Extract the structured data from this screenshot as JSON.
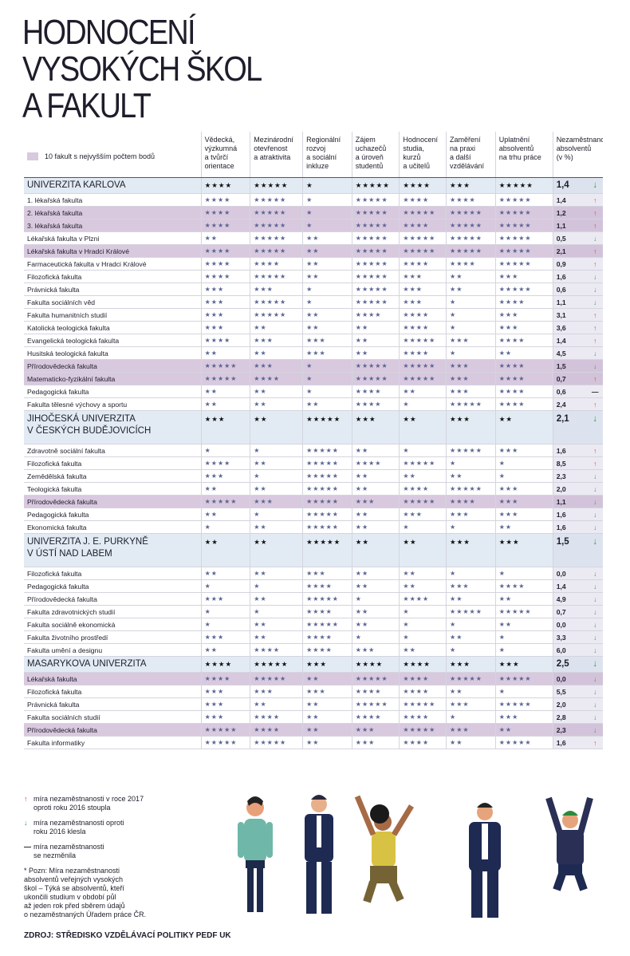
{
  "header": {
    "title": [
      "HODNOCENÍ",
      "VYSOKÝCH ŠKOL",
      "A FAKULT"
    ]
  },
  "table": {
    "legend": "10 fakult s nejvyšším počtem bodů",
    "columns": [
      "Vědecká,\nvýzkumná\na tvůrčí\norientace",
      "Mezinárodní\notevřenost\na atraktivita",
      "Regionální\nrozvoj\na sociální\ninkluze",
      "Zájem\nuchazečů\na úroveň\nstudentů",
      "Hodnocení\nstudia,\nkurzů\na učitelů",
      "Zaměření\nna praxi\na další\nvzdělávání",
      "Uplatnění\nabsolventů\nna trhu práce",
      "Nezaměstnanost\nabsolventů\n(v %)"
    ],
    "rows": [
      {
        "kind": "university",
        "name": "UNIVERZITA KARLOVA",
        "stars": [
          "★★★★",
          "★★★★★",
          "★",
          "★★★★★",
          "★★★★",
          "★★★",
          "★★★★★"
        ],
        "value": "1,4",
        "trend": "↓"
      },
      {
        "name": "1. lékařská fakulta",
        "stars": [
          "★★★★",
          "★★★★★",
          "★",
          "★★★★★",
          "★★★★",
          "★★★★",
          "★★★★★"
        ],
        "value": "1,4",
        "trend": "↑"
      },
      {
        "name": "2. lékařská fakulta",
        "top10": true,
        "stars": [
          "★★★★",
          "★★★★★",
          "★",
          "★★★★★",
          "★★★★★",
          "★★★★★",
          "★★★★★"
        ],
        "value": "1,2",
        "trend": "↑"
      },
      {
        "name": "3. lékařská fakulta",
        "top10": true,
        "stars": [
          "★★★★",
          "★★★★★",
          "★",
          "★★★★★",
          "★★★★",
          "★★★★★",
          "★★★★★"
        ],
        "value": "1,1",
        "trend": "↑"
      },
      {
        "name": "Lékařská fakulta v Plzni",
        "stars": [
          "★★",
          "★★★★★",
          "★★",
          "★★★★★",
          "★★★★★",
          "★★★★★",
          "★★★★★"
        ],
        "value": "0,5",
        "trend": "↓"
      },
      {
        "name": "Lékařská fakulta v Hradci Králové",
        "top10": true,
        "stars": [
          "★★★★",
          "★★★★★",
          "★★",
          "★★★★★",
          "★★★★★",
          "★★★★★",
          "★★★★★"
        ],
        "value": "2,1",
        "trend": "↑"
      },
      {
        "name": "Farmaceutická fakulta v Hradci Králové",
        "stars": [
          "★★★★",
          "★★★★",
          "★★",
          "★★★★★",
          "★★★★",
          "★★★★",
          "★★★★★"
        ],
        "value": "0,9",
        "trend": "↑"
      },
      {
        "name": "Filozofická fakulta",
        "stars": [
          "★★★★",
          "★★★★★",
          "★★",
          "★★★★★",
          "★★★",
          "★★",
          "★★★"
        ],
        "value": "1,6",
        "trend": "↓"
      },
      {
        "name": "Právnická fakulta",
        "stars": [
          "★★★",
          "★★★",
          "★",
          "★★★★★",
          "★★★",
          "★★",
          "★★★★★"
        ],
        "value": "0,6",
        "trend": "↓"
      },
      {
        "name": "Fakulta sociálních věd",
        "stars": [
          "★★★",
          "★★★★★",
          "★",
          "★★★★★",
          "★★★",
          "★",
          "★★★★"
        ],
        "value": "1,1",
        "trend": "↓"
      },
      {
        "name": "Fakulta humanitních studií",
        "stars": [
          "★★★",
          "★★★★★",
          "★★",
          "★★★★",
          "★★★★",
          "★",
          "★★★"
        ],
        "value": "3,1",
        "trend": "↑"
      },
      {
        "name": "Katolická teologická fakulta",
        "stars": [
          "★★★",
          "★★",
          "★★",
          "★★",
          "★★★★",
          "★",
          "★★★"
        ],
        "value": "3,6",
        "trend": "↑"
      },
      {
        "name": "Evangelická teologická fakulta",
        "stars": [
          "★★★★",
          "★★★",
          "★★★",
          "★★",
          "★★★★★",
          "★★★",
          "★★★★"
        ],
        "value": "1,4",
        "trend": "↑"
      },
      {
        "name": "Husitská teologická fakulta",
        "stars": [
          "★★",
          "★★",
          "★★★",
          "★★",
          "★★★★",
          "★",
          "★★"
        ],
        "value": "4,5",
        "trend": "↓"
      },
      {
        "name": "Přírodovědecká fakulta",
        "top10": true,
        "stars": [
          "★★★★★",
          "★★★",
          "★",
          "★★★★★",
          "★★★★★",
          "★★★",
          "★★★★"
        ],
        "value": "1,5",
        "trend": "↓"
      },
      {
        "name": "Matematicko-fyzikální fakulta",
        "top10": true,
        "stars": [
          "★★★★★",
          "★★★★",
          "★",
          "★★★★★",
          "★★★★★",
          "★★★",
          "★★★★"
        ],
        "value": "0,7",
        "trend": "↑"
      },
      {
        "name": "Pedagogická fakulta",
        "stars": [
          "★★",
          "★★",
          "★",
          "★★★★",
          "★★",
          "★★★",
          "★★★★"
        ],
        "value": "0,6",
        "trend": "—"
      },
      {
        "name": "Fakulta tělesné výchovy a sportu",
        "stars": [
          "★★",
          "★★",
          "★★",
          "★★★★",
          "★",
          "★★★★★",
          "★★★★"
        ],
        "value": "2,4",
        "trend": "↑"
      },
      {
        "kind": "university",
        "name": "JIHOČESKÁ UNIVERZITA\nV ČESKÝCH BUDĚJOVICÍCH",
        "stars": [
          "★★★",
          "★★",
          "★★★★★",
          "★★★",
          "★★",
          "★★★",
          "★★"
        ],
        "value": "2,1",
        "trend": "↓"
      },
      {
        "name": "Zdravotně sociální fakulta",
        "stars": [
          "★",
          "★",
          "★★★★★",
          "★★",
          "★",
          "★★★★★",
          "★★★"
        ],
        "value": "1,6",
        "trend": "↑"
      },
      {
        "name": "Filozofická fakulta",
        "stars": [
          "★★★★",
          "★★",
          "★★★★★",
          "★★★★",
          "★★★★★",
          "★",
          "★"
        ],
        "value": "8,5",
        "trend": "↑"
      },
      {
        "name": "Zemědělská fakulta",
        "stars": [
          "★★★",
          "★",
          "★★★★★",
          "★★",
          "★★",
          "★★",
          "★"
        ],
        "value": "2,3",
        "trend": "↓"
      },
      {
        "name": "Teologická fakulta",
        "stars": [
          "★★",
          "★★",
          "★★★★★",
          "★★",
          "★★★★",
          "★★★★★",
          "★★★"
        ],
        "value": "2,0",
        "trend": "↓"
      },
      {
        "name": "Přírodovědecká fakulta",
        "top10": true,
        "stars": [
          "★★★★★",
          "★★★",
          "★★★★★",
          "★★★",
          "★★★★★",
          "★★★★",
          "★★★"
        ],
        "value": "1,1",
        "trend": "↓"
      },
      {
        "name": "Pedagogická fakulta",
        "stars": [
          "★★",
          "★",
          "★★★★★",
          "★★",
          "★★★",
          "★★★",
          "★★★"
        ],
        "value": "1,6",
        "trend": "↓"
      },
      {
        "name": "Ekonomická fakulta",
        "stars": [
          "★",
          "★★",
          "★★★★★",
          "★★",
          "★",
          "★",
          "★★"
        ],
        "value": "1,6",
        "trend": "↓"
      },
      {
        "kind": "university",
        "name": "UNIVERZITA J. E. PURKYNĚ\nV ÚSTÍ NAD LABEM",
        "stars": [
          "★★",
          "★★",
          "★★★★★",
          "★★",
          "★★",
          "★★★",
          "★★★"
        ],
        "value": "1,5",
        "trend": "↓"
      },
      {
        "name": "Filozofická fakulta",
        "stars": [
          "★★",
          "★★",
          "★★★",
          "★★",
          "★★",
          "★",
          "★"
        ],
        "value": "0,0",
        "trend": "↓"
      },
      {
        "name": "Pedagogická fakulta",
        "stars": [
          "★",
          "★",
          "★★★★",
          "★★",
          "★★",
          "★★★",
          "★★★★"
        ],
        "value": "1,4",
        "trend": "↓"
      },
      {
        "name": "Přírodovědecká fakulta",
        "stars": [
          "★★★",
          "★★",
          "★★★★★",
          "★",
          "★★★★",
          "★★",
          "★★"
        ],
        "value": "4,9",
        "trend": "↓"
      },
      {
        "name": "Fakulta zdravotnických studií",
        "stars": [
          "★",
          "★",
          "★★★★",
          "★★",
          "★",
          "★★★★★",
          "★★★★★"
        ],
        "value": "0,7",
        "trend": "↓"
      },
      {
        "name": "Fakulta sociálně ekonomická",
        "stars": [
          "★",
          "★★",
          "★★★★★",
          "★★",
          "★",
          "★",
          "★★"
        ],
        "value": "0,0",
        "trend": "↓"
      },
      {
        "name": "Fakulta životního prostředí",
        "stars": [
          "★★★",
          "★★",
          "★★★★",
          "★",
          "★",
          "★★",
          "★"
        ],
        "value": "3,3",
        "trend": "↓"
      },
      {
        "name": "Fakulta umění a designu",
        "stars": [
          "★★",
          "★★★★",
          "★★★★",
          "★★★",
          "★★",
          "★",
          "★"
        ],
        "value": "6,0",
        "trend": "↓"
      },
      {
        "kind": "university",
        "name": "MASARYKOVA UNIVERZITA",
        "stars": [
          "★★★★",
          "★★★★★",
          "★★★",
          "★★★★",
          "★★★★",
          "★★★",
          "★★★"
        ],
        "value": "2,5",
        "trend": "↓"
      },
      {
        "name": "Lékařská fakulta",
        "top10": true,
        "stars": [
          "★★★★",
          "★★★★★",
          "★★",
          "★★★★★",
          "★★★★",
          "★★★★★",
          "★★★★★"
        ],
        "value": "0,0",
        "trend": "↓"
      },
      {
        "name": "Filozofická fakulta",
        "stars": [
          "★★★",
          "★★★",
          "★★★",
          "★★★★",
          "★★★★",
          "★★",
          "★"
        ],
        "value": "5,5",
        "trend": "↓"
      },
      {
        "name": "Právnická fakulta",
        "stars": [
          "★★★",
          "★★",
          "★★",
          "★★★★★",
          "★★★★★",
          "★★★",
          "★★★★★"
        ],
        "value": "2,0",
        "trend": "↓"
      },
      {
        "name": "Fakulta sociálních studií",
        "stars": [
          "★★★",
          "★★★★",
          "★★",
          "★★★★",
          "★★★★",
          "★",
          "★★★"
        ],
        "value": "2,8",
        "trend": "↓"
      },
      {
        "name": "Přírodovědecká fakulta",
        "top10": true,
        "stars": [
          "★★★★★",
          "★★★★",
          "★★",
          "★★★",
          "★★★★★",
          "★★★",
          "★★"
        ],
        "value": "2,3",
        "trend": "↓"
      },
      {
        "name": "Fakulta informatiky",
        "stars": [
          "★★★★★",
          "★★★★★",
          "★★",
          "★★★",
          "★★★★",
          "★★",
          "★★★★★"
        ],
        "value": "1,6",
        "trend": "↑"
      }
    ]
  },
  "legend": [
    {
      "symbol": "↑",
      "text": "míra nezaměstnanosti v roce 2017\noproti roku 2016 stoupla"
    },
    {
      "symbol": "↓",
      "text": "míra nezaměstnanosti oproti\nroku 2016 klesla"
    },
    {
      "symbol": "—",
      "text": "míra nezaměstnanosti\nse nezměnila"
    }
  ],
  "note": "* Pozn: Míra nezaměstnanosti\nabsolventů veřejných vysokých\nškol – Týká se absolventů, kteří\nukončili studium v období půl\naž jeden rok před sběrem údajů\no nezaměstnaných Úřadem práce ČR.",
  "source": "ZDROJ: STŘEDISKO VZDĚLÁVACÍ POLITIKY PEDF UK"
}
